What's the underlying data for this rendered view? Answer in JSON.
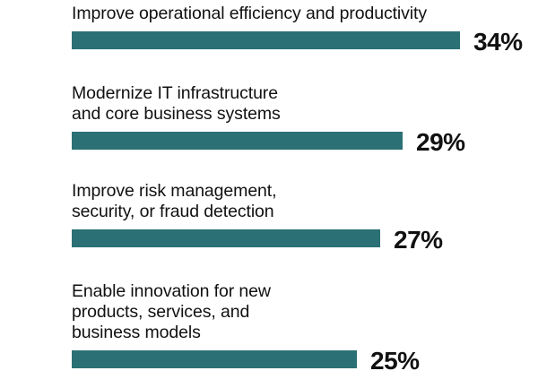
{
  "chart_data": {
    "type": "bar",
    "orientation": "horizontal",
    "categories": [
      [
        "Improve operational efficiency and productivity"
      ],
      [
        "Modernize IT infrastructure",
        "and core business systems"
      ],
      [
        "Improve risk management,",
        "security, or fraud detection"
      ],
      [
        "Enable innovation for new",
        "products, services, and",
        "business models"
      ]
    ],
    "values": [
      34,
      29,
      27,
      25
    ],
    "value_labels": [
      "34%",
      "29%",
      "27%",
      "25%"
    ],
    "unit": "%",
    "title": "",
    "xlabel": "",
    "ylabel": "",
    "xlim": [
      0,
      34
    ],
    "grid": false,
    "legend": "none",
    "bar_color": "#2b7075"
  }
}
